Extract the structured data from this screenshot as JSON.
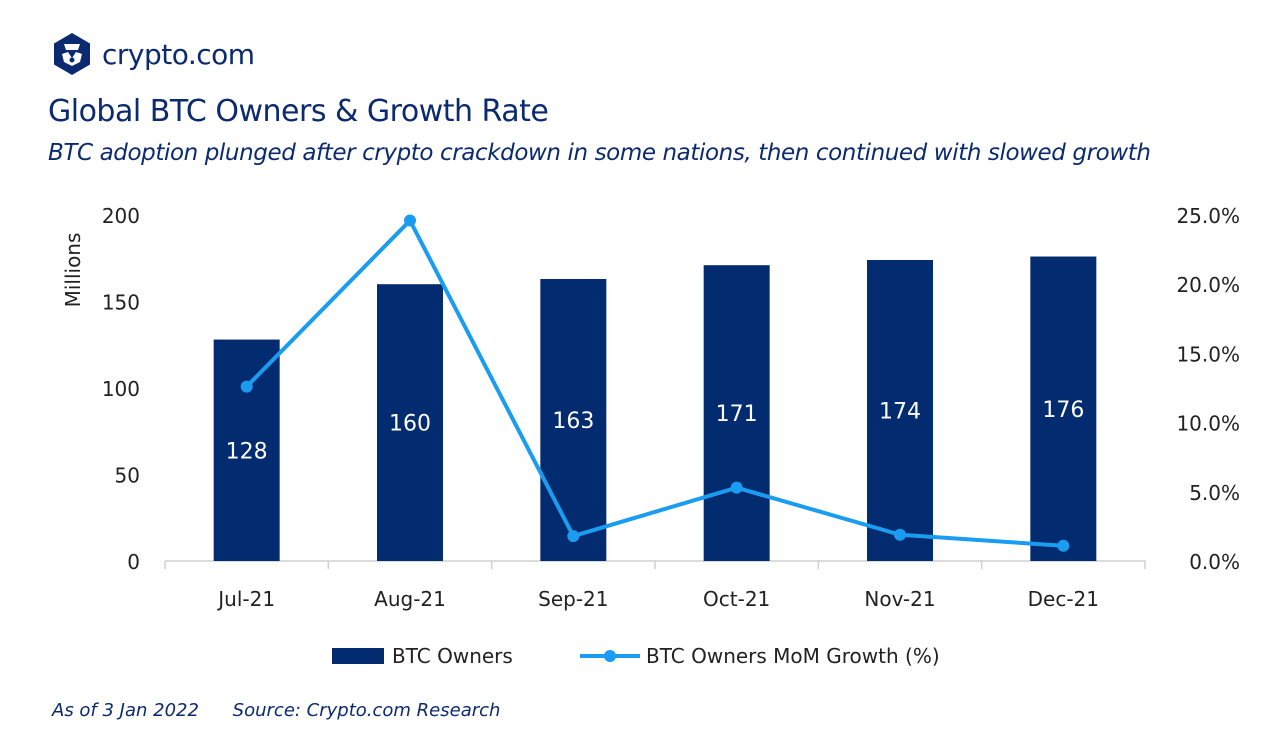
{
  "brand": {
    "name": "crypto.com",
    "logo_icon": "crypto-com-hexagon-lion-icon",
    "color": "#0b2a6f"
  },
  "header": {
    "title": "Global BTC Owners & Growth Rate",
    "subtitle": "BTC adoption plunged after crypto crackdown in some nations, then continued with slowed growth"
  },
  "footer": {
    "as_of": "As of 3 Jan 2022",
    "source": "Source: Crypto.com Research"
  },
  "chart_data": {
    "type": "bar+line",
    "categories": [
      "Jul-21",
      "Aug-21",
      "Sep-21",
      "Oct-21",
      "Nov-21",
      "Dec-21"
    ],
    "series": [
      {
        "name": "BTC Owners",
        "type": "bar",
        "axis": "left",
        "color": "#032b70",
        "values": [
          128,
          160,
          163,
          171,
          174,
          176
        ],
        "data_labels": [
          "128",
          "160",
          "163",
          "171",
          "174",
          "176"
        ]
      },
      {
        "name": "BTC Owners MoM Growth (%)",
        "type": "line",
        "axis": "right",
        "color": "#1a9cf0",
        "values": [
          12.6,
          24.6,
          1.8,
          5.3,
          1.9,
          1.1
        ]
      }
    ],
    "ylabel": "Millions",
    "ylim": [
      0,
      200
    ],
    "yticks": [
      "0",
      "50",
      "100",
      "150",
      "200"
    ],
    "y2lim": [
      0,
      25
    ],
    "y2ticks": [
      "0.0%",
      "5.0%",
      "10.0%",
      "15.0%",
      "20.0%",
      "25.0%"
    ],
    "grid": false,
    "legend_position": "bottom"
  }
}
